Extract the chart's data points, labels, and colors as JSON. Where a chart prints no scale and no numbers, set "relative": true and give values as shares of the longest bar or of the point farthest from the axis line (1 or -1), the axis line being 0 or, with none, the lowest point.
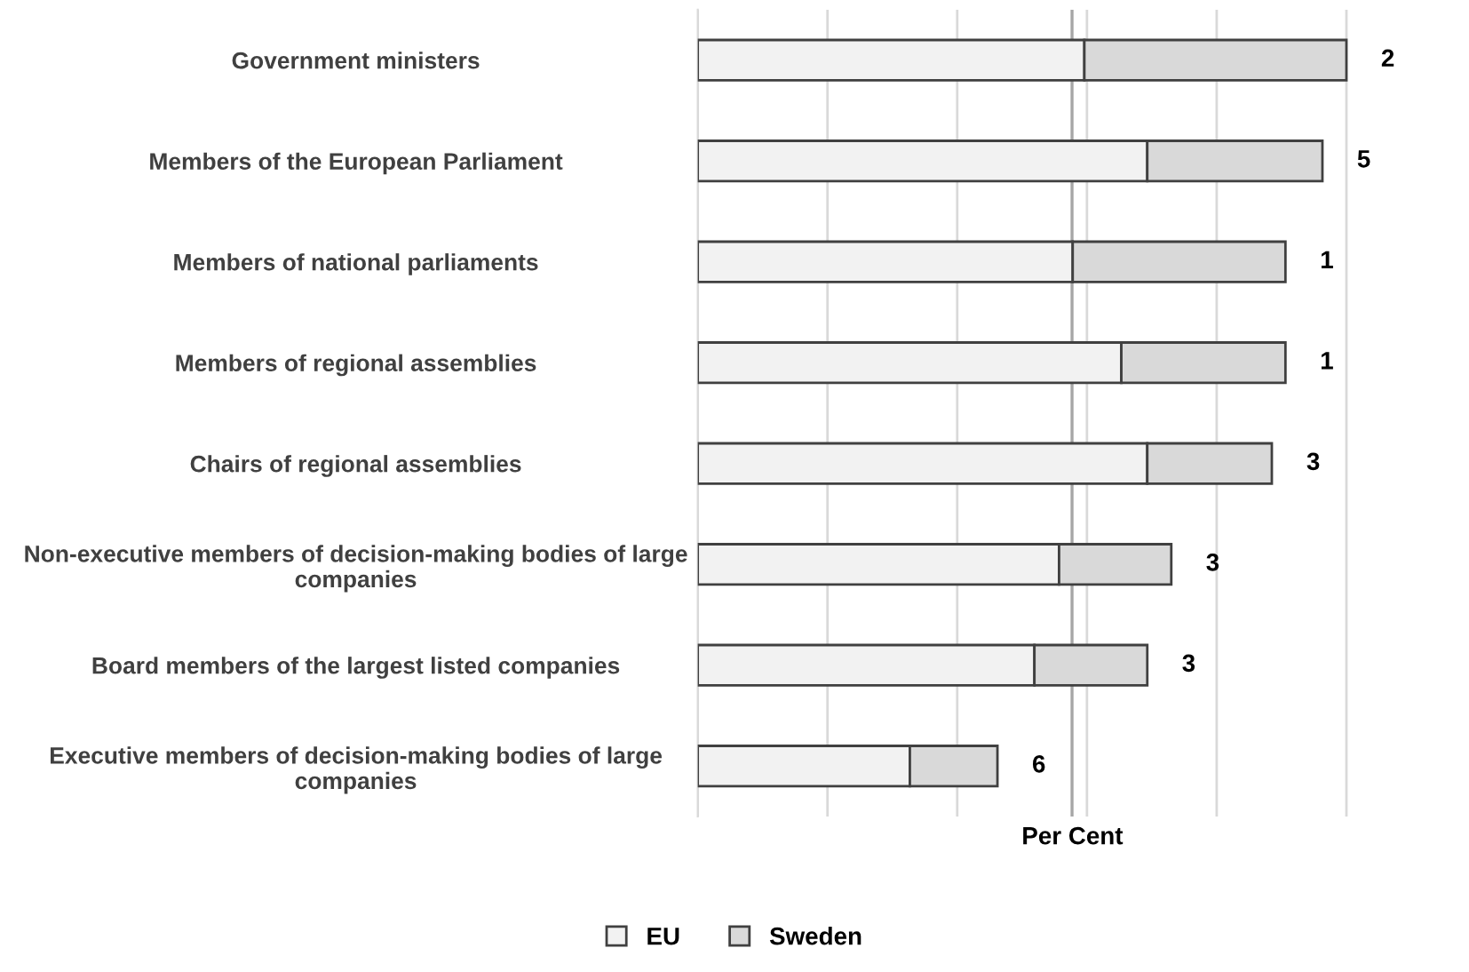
{
  "chart_data": {
    "type": "bar",
    "orientation": "horizontal",
    "stacked": true,
    "relative": true,
    "xlabel": "Per Cent",
    "categories": [
      "Government ministers",
      "Members of the European Parliament",
      "Members of national parliaments",
      "Members of regional assemblies",
      "Chairs of regional assemblies",
      "Non-executive members of decision-making bodies of large companies",
      "Board members of the largest listed companies",
      "Executive members of decision-making bodies of large companies"
    ],
    "series": [
      {
        "name": "EU",
        "color": "#f2f2f2",
        "values": [
          0.596,
          0.693,
          0.578,
          0.653,
          0.693,
          0.557,
          0.519,
          0.327
        ]
      },
      {
        "name": "Sweden",
        "color": "#d9d9d9",
        "values": [
          0.404,
          0.27,
          0.328,
          0.253,
          0.192,
          0.173,
          0.174,
          0.135
        ]
      }
    ],
    "annotations": [
      "2",
      "5",
      "1",
      "1",
      "3",
      "3",
      "3",
      "6"
    ],
    "ref_lines": [
      {
        "axis": "x",
        "value": 0.577,
        "color": "#a6a6a6"
      }
    ],
    "grid": "x",
    "legend": "bottom"
  }
}
